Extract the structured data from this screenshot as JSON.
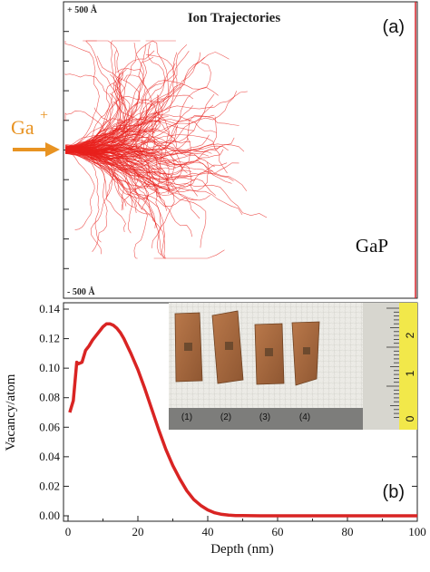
{
  "panel_a": {
    "top_label": "+ 500 Å",
    "bottom_label": "- 500 Å",
    "title": "Ion Trajectories",
    "panel_label": "(a)",
    "ion_label": "Ga",
    "ion_charge": "+",
    "material_label": "GaP"
  },
  "panel_b": {
    "panel_label": "(b)",
    "inset": {
      "sample_labels": [
        "(1)",
        "(2)",
        "(3)",
        "(4)"
      ],
      "ruler_labels": [
        "2",
        "1",
        "0"
      ]
    }
  },
  "colors": {
    "trajectory": "#e8201c",
    "ion_arrow": "#e89322",
    "curve": "#d92423",
    "ruler": "#f2e84a"
  },
  "chart_data": [
    {
      "type": "scatter",
      "title": "Ion Trajectories",
      "description_labels": [
        "+ 500 Å",
        "- 500 Å",
        "GaP"
      ]
    },
    {
      "type": "line",
      "xlabel": "Depth (nm)",
      "ylabel": "Vacancy/atom",
      "xlim": [
        0,
        100
      ],
      "ylim": [
        0,
        0.14
      ],
      "xticks": [
        0,
        20,
        40,
        60,
        80,
        100
      ],
      "yticks": [
        0.0,
        0.02,
        0.04,
        0.06,
        0.08,
        0.1,
        0.12,
        0.14
      ],
      "ytick_labels": [
        "0.00",
        "0.02",
        "0.04",
        "0.06",
        "0.08",
        "0.10",
        "0.12",
        "0.14"
      ],
      "xtick_labels": [
        "0",
        "20",
        "40",
        "60",
        "80",
        "100"
      ],
      "series": [
        {
          "x": [
            0.5,
            1.5,
            2.5,
            3.0,
            4.0,
            5.0,
            6.0,
            7.0,
            8.0,
            9.0,
            10.0,
            11.0,
            12.0,
            13.0,
            14.0,
            15.0,
            16.0,
            17.0,
            18.0,
            20.0,
            22.0,
            24.0,
            26.0,
            28.0,
            30.0,
            32.0,
            34.0,
            36.0,
            38.0,
            40.0,
            42.0,
            44.0,
            46.0,
            48.0,
            50.0,
            55.0,
            60.0,
            70.0,
            80.0,
            90.0,
            100.0
          ],
          "y": [
            0.07,
            0.078,
            0.104,
            0.103,
            0.104,
            0.112,
            0.115,
            0.119,
            0.122,
            0.125,
            0.128,
            0.13,
            0.13,
            0.129,
            0.127,
            0.124,
            0.12,
            0.115,
            0.11,
            0.099,
            0.086,
            0.072,
            0.058,
            0.045,
            0.034,
            0.025,
            0.017,
            0.011,
            0.007,
            0.004,
            0.002,
            0.001,
            0.0005,
            0.0002,
            0.0001,
            0.0,
            0.0,
            0.0,
            0.0,
            0.0,
            0.0
          ]
        }
      ]
    }
  ]
}
